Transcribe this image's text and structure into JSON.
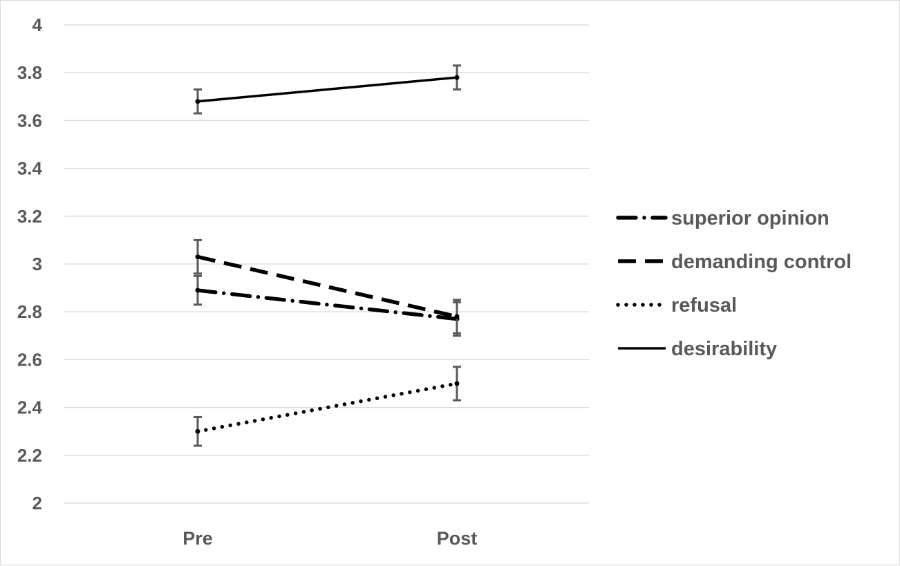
{
  "chart_data": {
    "type": "line",
    "title": "",
    "xlabel": "",
    "ylabel": "",
    "categories": [
      "Pre",
      "Post"
    ],
    "ylim": [
      2,
      4
    ],
    "yticks": [
      "2",
      "2.2",
      "2.4",
      "2.6",
      "2.8",
      "3",
      "3.2",
      "3.4",
      "3.6",
      "3.8",
      "4"
    ],
    "grid": true,
    "legend_position": "right",
    "error_bars": true,
    "series": [
      {
        "name": "superior opinion",
        "dash": "dash-dot",
        "values": [
          2.89,
          2.77
        ],
        "errors": [
          0.06,
          0.07
        ]
      },
      {
        "name": "demanding control",
        "dash": "dash",
        "values": [
          3.03,
          2.78
        ],
        "errors": [
          0.07,
          0.07
        ]
      },
      {
        "name": "refusal",
        "dash": "dot",
        "values": [
          2.3,
          2.5
        ],
        "errors": [
          0.06,
          0.07
        ]
      },
      {
        "name": "desirability",
        "dash": "solid",
        "values": [
          3.68,
          3.78
        ],
        "errors": [
          0.05,
          0.05
        ]
      }
    ],
    "colors": {
      "line": "#000000",
      "error_bar": "#595959",
      "grid": "#d9d9d9",
      "text": "#595959"
    }
  }
}
